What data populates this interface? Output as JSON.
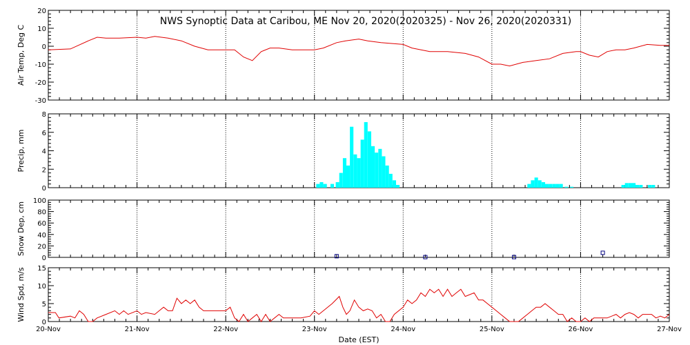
{
  "chart_data": {
    "title": "NWS Synoptic Data at Caribou, ME   Nov 20, 2020(2020325) - Nov 26, 2020(2020331)",
    "xlabel": "Date (EST)",
    "x_ticks": [
      "20-Nov",
      "21-Nov",
      "22-Nov",
      "23-Nov",
      "24-Nov",
      "25-Nov",
      "26-Nov",
      "27-Nov"
    ],
    "xlim_days": [
      0,
      7
    ],
    "panels": [
      {
        "type": "line",
        "ylabel": "Air Temp, Deg C",
        "ylim": [
          -30,
          20
        ],
        "yticks": [
          -30,
          -20,
          -10,
          0,
          10,
          20
        ],
        "color": "#e00000",
        "points": [
          [
            0,
            -2
          ],
          [
            0.25,
            -1.5
          ],
          [
            0.45,
            3
          ],
          [
            0.55,
            5
          ],
          [
            0.65,
            4.5
          ],
          [
            0.8,
            4.5
          ],
          [
            1,
            5
          ],
          [
            1.1,
            4.5
          ],
          [
            1.2,
            5.5
          ],
          [
            1.35,
            4.5
          ],
          [
            1.5,
            3
          ],
          [
            1.65,
            0
          ],
          [
            1.8,
            -2
          ],
          [
            2,
            -2
          ],
          [
            2.1,
            -2
          ],
          [
            2.2,
            -6
          ],
          [
            2.3,
            -8
          ],
          [
            2.4,
            -3
          ],
          [
            2.5,
            -1
          ],
          [
            2.6,
            -1
          ],
          [
            2.75,
            -2
          ],
          [
            3,
            -2
          ],
          [
            3.1,
            -1
          ],
          [
            3.25,
            2
          ],
          [
            3.35,
            3
          ],
          [
            3.5,
            4
          ],
          [
            3.6,
            3
          ],
          [
            3.75,
            2
          ],
          [
            4,
            1
          ],
          [
            4.1,
            -1
          ],
          [
            4.3,
            -3
          ],
          [
            4.5,
            -3
          ],
          [
            4.7,
            -4
          ],
          [
            4.85,
            -6
          ],
          [
            5,
            -10
          ],
          [
            5.1,
            -10
          ],
          [
            5.2,
            -11
          ],
          [
            5.35,
            -9
          ],
          [
            5.5,
            -8
          ],
          [
            5.65,
            -7
          ],
          [
            5.8,
            -4
          ],
          [
            5.95,
            -3
          ],
          [
            6,
            -3
          ],
          [
            6.1,
            -5
          ],
          [
            6.2,
            -6
          ],
          [
            6.3,
            -3
          ],
          [
            6.4,
            -2
          ],
          [
            6.5,
            -2
          ],
          [
            6.6,
            -1
          ],
          [
            6.75,
            1
          ],
          [
            6.9,
            0.5
          ],
          [
            7,
            0.5
          ]
        ]
      },
      {
        "type": "bar",
        "ylabel": "Precip, mm",
        "ylim": [
          0,
          8
        ],
        "yticks": [
          0,
          2,
          4,
          6,
          8
        ],
        "color": "#00ffff",
        "bar_width_days": 0.04,
        "bars": [
          [
            3.04,
            0.4
          ],
          [
            3.08,
            0.6
          ],
          [
            3.12,
            0.4
          ],
          [
            3.2,
            0.4
          ],
          [
            3.26,
            0.6
          ],
          [
            3.3,
            1.6
          ],
          [
            3.34,
            3.2
          ],
          [
            3.38,
            2.4
          ],
          [
            3.42,
            6.6
          ],
          [
            3.46,
            3.6
          ],
          [
            3.5,
            3.2
          ],
          [
            3.54,
            5.2
          ],
          [
            3.58,
            7.1
          ],
          [
            3.62,
            6.1
          ],
          [
            3.66,
            4.5
          ],
          [
            3.7,
            3.8
          ],
          [
            3.74,
            4.2
          ],
          [
            3.78,
            3.4
          ],
          [
            3.82,
            2.4
          ],
          [
            3.86,
            1.5
          ],
          [
            3.9,
            0.8
          ],
          [
            3.94,
            0.3
          ],
          [
            5.42,
            0.4
          ],
          [
            5.46,
            0.8
          ],
          [
            5.5,
            1.1
          ],
          [
            5.54,
            0.8
          ],
          [
            5.58,
            0.6
          ],
          [
            5.62,
            0.4
          ],
          [
            5.66,
            0.4
          ],
          [
            5.7,
            0.4
          ],
          [
            5.74,
            0.4
          ],
          [
            5.78,
            0.4
          ],
          [
            5.84,
            0.1
          ],
          [
            5.9,
            0.1
          ],
          [
            6.48,
            0.3
          ],
          [
            6.52,
            0.5
          ],
          [
            6.56,
            0.5
          ],
          [
            6.6,
            0.5
          ],
          [
            6.64,
            0.3
          ],
          [
            6.68,
            0.3
          ],
          [
            6.78,
            0.3
          ],
          [
            6.82,
            0.3
          ]
        ]
      },
      {
        "type": "scatter",
        "ylabel": "Snow Dep, cm",
        "ylim": [
          0,
          100
        ],
        "yticks": [
          0,
          20,
          40,
          60,
          80,
          100
        ],
        "color": "#000080",
        "points": [
          [
            3.25,
            2
          ],
          [
            4.25,
            0.5
          ],
          [
            5.25,
            0.5
          ],
          [
            6.25,
            8
          ]
        ]
      },
      {
        "type": "line",
        "ylabel": "Wind Spd, m/s",
        "ylim": [
          0,
          15
        ],
        "yticks": [
          0,
          5,
          10,
          15
        ],
        "color": "#e00000",
        "points": [
          [
            0,
            2.5
          ],
          [
            0.08,
            2.5
          ],
          [
            0.12,
            1
          ],
          [
            0.25,
            1.5
          ],
          [
            0.3,
            1
          ],
          [
            0.35,
            3
          ],
          [
            0.4,
            2
          ],
          [
            0.45,
            0
          ],
          [
            0.5,
            0
          ],
          [
            0.55,
            1
          ],
          [
            0.65,
            2
          ],
          [
            0.75,
            3
          ],
          [
            0.8,
            2
          ],
          [
            0.85,
            3
          ],
          [
            0.9,
            2
          ],
          [
            1,
            3
          ],
          [
            1.05,
            2
          ],
          [
            1.1,
            2.5
          ],
          [
            1.2,
            2
          ],
          [
            1.25,
            3
          ],
          [
            1.3,
            4
          ],
          [
            1.35,
            3
          ],
          [
            1.4,
            3
          ],
          [
            1.45,
            6.5
          ],
          [
            1.5,
            5
          ],
          [
            1.55,
            6
          ],
          [
            1.6,
            5
          ],
          [
            1.65,
            6
          ],
          [
            1.7,
            4
          ],
          [
            1.75,
            3
          ],
          [
            1.8,
            3
          ],
          [
            1.9,
            3
          ],
          [
            2,
            3
          ],
          [
            2.05,
            4
          ],
          [
            2.1,
            1
          ],
          [
            2.15,
            0
          ],
          [
            2.2,
            2
          ],
          [
            2.25,
            0
          ],
          [
            2.3,
            1
          ],
          [
            2.35,
            2
          ],
          [
            2.4,
            0
          ],
          [
            2.45,
            2
          ],
          [
            2.5,
            0
          ],
          [
            2.55,
            1
          ],
          [
            2.6,
            2
          ],
          [
            2.65,
            1
          ],
          [
            2.75,
            1
          ],
          [
            2.85,
            1
          ],
          [
            2.95,
            1.5
          ],
          [
            3,
            3
          ],
          [
            3.05,
            2
          ],
          [
            3.1,
            3
          ],
          [
            3.2,
            5
          ],
          [
            3.28,
            7
          ],
          [
            3.32,
            4
          ],
          [
            3.36,
            2
          ],
          [
            3.4,
            3
          ],
          [
            3.45,
            6
          ],
          [
            3.5,
            4
          ],
          [
            3.55,
            3
          ],
          [
            3.6,
            3.5
          ],
          [
            3.65,
            3
          ],
          [
            3.7,
            1
          ],
          [
            3.75,
            2
          ],
          [
            3.8,
            0
          ],
          [
            3.85,
            0
          ],
          [
            3.9,
            2
          ],
          [
            4,
            4
          ],
          [
            4.05,
            6
          ],
          [
            4.1,
            5
          ],
          [
            4.15,
            6
          ],
          [
            4.2,
            8
          ],
          [
            4.25,
            7
          ],
          [
            4.3,
            9
          ],
          [
            4.35,
            8
          ],
          [
            4.4,
            9
          ],
          [
            4.45,
            7
          ],
          [
            4.5,
            9
          ],
          [
            4.55,
            7
          ],
          [
            4.6,
            8
          ],
          [
            4.65,
            9
          ],
          [
            4.7,
            7
          ],
          [
            4.75,
            7.5
          ],
          [
            4.8,
            8
          ],
          [
            4.85,
            6
          ],
          [
            4.9,
            6
          ],
          [
            4.95,
            5
          ],
          [
            5,
            4
          ],
          [
            5.05,
            3
          ],
          [
            5.1,
            2
          ],
          [
            5.15,
            1
          ],
          [
            5.2,
            0
          ],
          [
            5.3,
            0
          ],
          [
            5.35,
            1
          ],
          [
            5.4,
            2
          ],
          [
            5.45,
            3
          ],
          [
            5.5,
            4
          ],
          [
            5.55,
            4
          ],
          [
            5.6,
            5
          ],
          [
            5.65,
            4
          ],
          [
            5.7,
            3
          ],
          [
            5.75,
            2
          ],
          [
            5.8,
            2
          ],
          [
            5.85,
            0
          ],
          [
            5.9,
            1
          ],
          [
            5.95,
            0
          ],
          [
            6,
            0
          ],
          [
            6.05,
            1
          ],
          [
            6.1,
            0
          ],
          [
            6.15,
            1
          ],
          [
            6.2,
            1
          ],
          [
            6.3,
            1
          ],
          [
            6.4,
            2
          ],
          [
            6.45,
            1
          ],
          [
            6.5,
            2
          ],
          [
            6.55,
            2.5
          ],
          [
            6.6,
            2
          ],
          [
            6.65,
            1
          ],
          [
            6.7,
            2
          ],
          [
            6.8,
            2
          ],
          [
            6.85,
            1
          ],
          [
            6.9,
            1.5
          ],
          [
            6.95,
            1
          ],
          [
            7,
            2
          ]
        ]
      }
    ]
  }
}
